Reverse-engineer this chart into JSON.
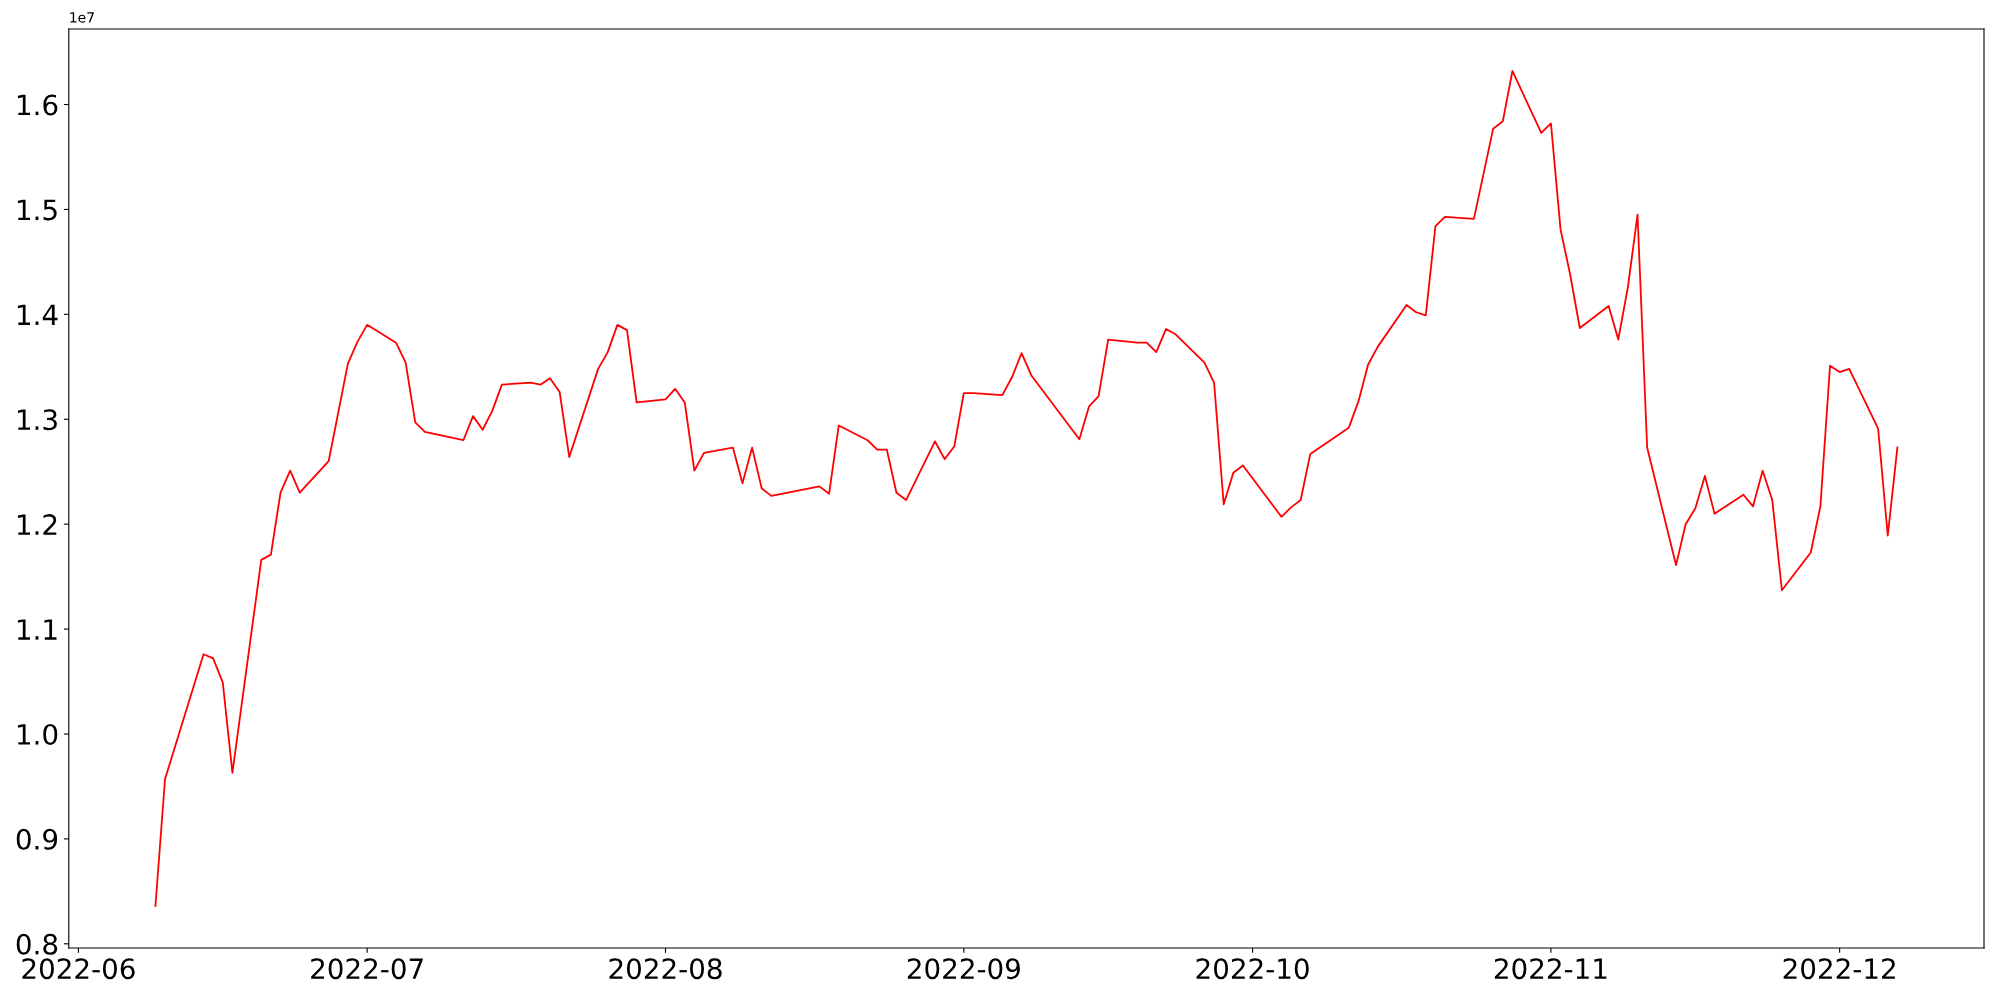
{
  "chart_data": {
    "type": "line",
    "x": [
      "2022-06-09",
      "2022-06-10",
      "2022-06-14",
      "2022-06-15",
      "2022-06-16",
      "2022-06-17",
      "2022-06-20",
      "2022-06-21",
      "2022-06-22",
      "2022-06-23",
      "2022-06-24",
      "2022-06-27",
      "2022-06-29",
      "2022-06-30",
      "2022-07-01",
      "2022-07-04",
      "2022-07-05",
      "2022-07-06",
      "2022-07-07",
      "2022-07-11",
      "2022-07-12",
      "2022-07-13",
      "2022-07-14",
      "2022-07-15",
      "2022-07-18",
      "2022-07-19",
      "2022-07-20",
      "2022-07-21",
      "2022-07-22",
      "2022-07-25",
      "2022-07-26",
      "2022-07-27",
      "2022-07-28",
      "2022-07-29",
      "2022-08-01",
      "2022-08-02",
      "2022-08-03",
      "2022-08-04",
      "2022-08-05",
      "2022-08-08",
      "2022-08-09",
      "2022-08-10",
      "2022-08-11",
      "2022-08-12",
      "2022-08-17",
      "2022-08-18",
      "2022-08-19",
      "2022-08-22",
      "2022-08-23",
      "2022-08-24",
      "2022-08-25",
      "2022-08-26",
      "2022-08-29",
      "2022-08-30",
      "2022-08-31",
      "2022-09-01",
      "2022-09-02",
      "2022-09-05",
      "2022-09-06",
      "2022-09-07",
      "2022-09-08",
      "2022-09-13",
      "2022-09-14",
      "2022-09-15",
      "2022-09-16",
      "2022-09-19",
      "2022-09-20",
      "2022-09-21",
      "2022-09-22",
      "2022-09-23",
      "2022-09-26",
      "2022-09-27",
      "2022-09-28",
      "2022-09-29",
      "2022-09-30",
      "2022-10-04",
      "2022-10-05",
      "2022-10-06",
      "2022-10-07",
      "2022-10-11",
      "2022-10-12",
      "2022-10-13",
      "2022-10-14",
      "2022-10-17",
      "2022-10-18",
      "2022-10-19",
      "2022-10-20",
      "2022-10-21",
      "2022-10-24",
      "2022-10-26",
      "2022-10-27",
      "2022-10-28",
      "2022-10-31",
      "2022-11-01",
      "2022-11-02",
      "2022-11-03",
      "2022-11-04",
      "2022-11-07",
      "2022-11-08",
      "2022-11-09",
      "2022-11-10",
      "2022-11-11",
      "2022-11-14",
      "2022-11-15",
      "2022-11-16",
      "2022-11-17",
      "2022-11-18",
      "2022-11-21",
      "2022-11-22",
      "2022-11-23",
      "2022-11-24",
      "2022-11-25",
      "2022-11-28",
      "2022-11-29",
      "2022-11-30",
      "2022-12-01",
      "2022-12-02",
      "2022-12-05",
      "2022-12-06",
      "2022-12-07"
    ],
    "series": [
      {
        "color": "#ff0000",
        "values": [
          0.836,
          0.957,
          1.076,
          1.072,
          1.049,
          0.963,
          1.166,
          1.171,
          1.23,
          1.251,
          1.23,
          1.26,
          1.353,
          1.374,
          1.39,
          1.373,
          1.354,
          1.297,
          1.288,
          1.28,
          1.303,
          1.29,
          1.308,
          1.333,
          1.335,
          1.333,
          1.339,
          1.326,
          1.264,
          1.348,
          1.364,
          1.39,
          1.385,
          1.316,
          1.319,
          1.329,
          1.316,
          1.251,
          1.268,
          1.273,
          1.239,
          1.273,
          1.234,
          1.227,
          1.236,
          1.229,
          1.294,
          1.28,
          1.271,
          1.271,
          1.23,
          1.223,
          1.279,
          1.262,
          1.274,
          1.325,
          1.325,
          1.323,
          1.34,
          1.363,
          1.342,
          1.281,
          1.312,
          1.322,
          1.376,
          1.373,
          1.373,
          1.364,
          1.386,
          1.381,
          1.354,
          1.335,
          1.219,
          1.249,
          1.256,
          1.207,
          1.216,
          1.223,
          1.267,
          1.292,
          1.317,
          1.352,
          1.369,
          1.409,
          1.402,
          1.399,
          1.484,
          1.493,
          1.491,
          1.577,
          1.584,
          1.632,
          1.573,
          1.582,
          1.481,
          1.438,
          1.387,
          1.408,
          1.376,
          1.426,
          1.495,
          1.273,
          1.161,
          1.2,
          1.215,
          1.246,
          1.21,
          1.228,
          1.217,
          1.251,
          1.223,
          1.137,
          1.173,
          1.217,
          1.351,
          1.345,
          1.348,
          1.291,
          1.189,
          1.273
        ]
      }
    ],
    "xlim": [
      "2022-05-31",
      "2022-12-16"
    ],
    "xticks": [
      {
        "value": "2022-06-01",
        "label": "2022-06"
      },
      {
        "value": "2022-07-01",
        "label": "2022-07"
      },
      {
        "value": "2022-08-01",
        "label": "2022-08"
      },
      {
        "value": "2022-09-01",
        "label": "2022-09"
      },
      {
        "value": "2022-10-01",
        "label": "2022-10"
      },
      {
        "value": "2022-11-01",
        "label": "2022-11"
      },
      {
        "value": "2022-12-01",
        "label": "2022-12"
      }
    ],
    "ylim": [
      0.796,
      1.672
    ],
    "yticks": [
      0.8,
      0.9,
      {
        "value": 1,
        "label": "1.0"
      },
      1.1,
      1.2,
      1.3,
      1.4,
      1.5,
      1.6
    ],
    "annotations": [
      "1e7"
    ],
    "grid": false,
    "marker": "none",
    "line_style": "solid"
  }
}
